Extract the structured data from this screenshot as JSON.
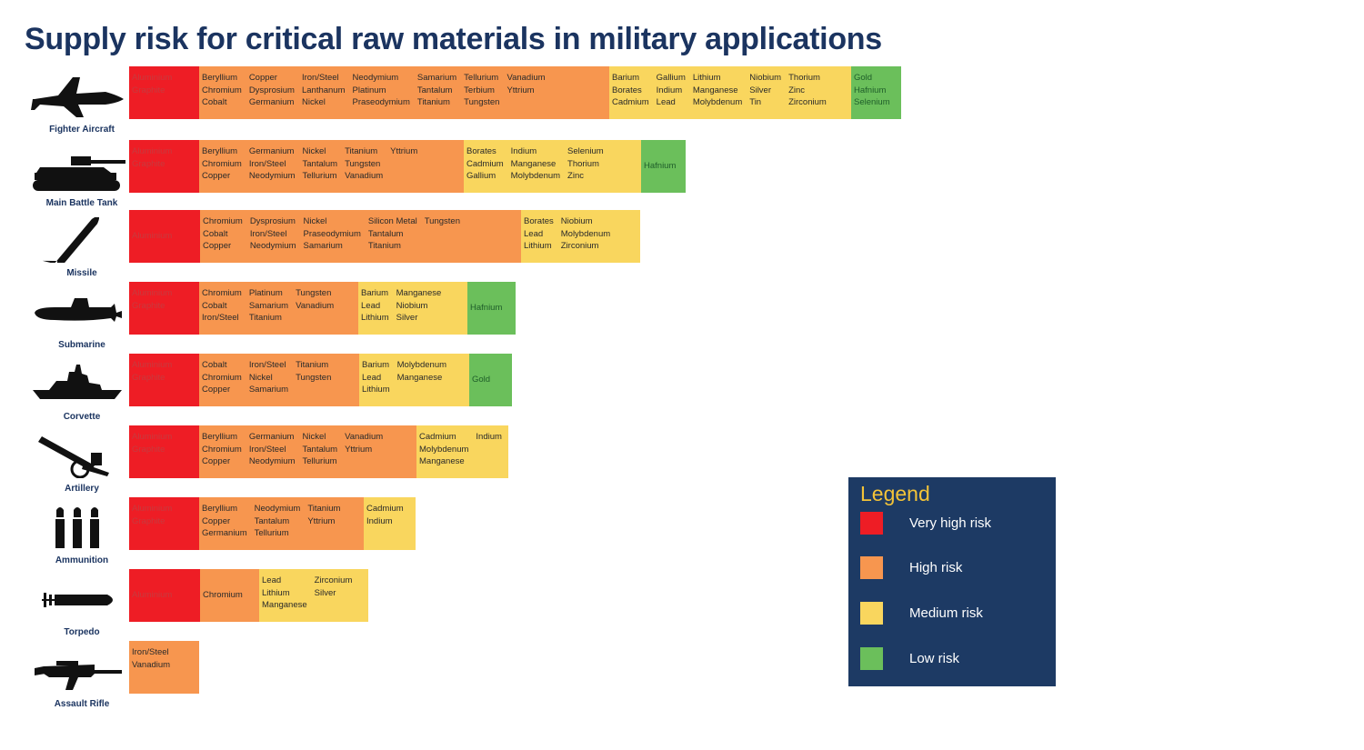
{
  "title": "Supply risk for critical raw materials in military applications",
  "legend": {
    "title": "Legend",
    "items": [
      {
        "key": "very_high",
        "label": "Very high risk",
        "color": "#ee1d25"
      },
      {
        "key": "high",
        "label": "High risk",
        "color": "#f7964f"
      },
      {
        "key": "medium",
        "label": "Medium risk",
        "color": "#f9d65e"
      },
      {
        "key": "low",
        "label": "Low risk",
        "color": "#6bbf5b"
      }
    ]
  },
  "chart_data": {
    "type": "table",
    "title": "Supply risk for critical raw materials in military applications",
    "risk_levels": [
      "very_high",
      "high",
      "medium",
      "low"
    ],
    "platforms": [
      {
        "name": "Fighter Aircraft",
        "icon": "fighter-aircraft-icon",
        "segments": [
          {
            "risk": "very_high",
            "columns": [
              [
                "Aluminium",
                "Graphite"
              ]
            ]
          },
          {
            "risk": "high",
            "columns": [
              [
                "Beryllium",
                "Chromium",
                "Cobalt"
              ],
              [
                "Copper",
                "Dysprosium",
                "Germanium"
              ],
              [
                "Iron/Steel",
                "Lanthanum",
                "Nickel"
              ],
              [
                "Neodymium",
                "Platinum",
                "Praseodymium"
              ],
              [
                "Samarium",
                "Tantalum",
                "Titanium"
              ],
              [
                "Tellurium",
                "Terbium",
                "Tungsten"
              ],
              [
                "Vanadium",
                "Yttrium"
              ]
            ]
          },
          {
            "risk": "medium",
            "columns": [
              [
                "Barium",
                "Borates",
                "Cadmium"
              ],
              [
                "Gallium",
                "Indium",
                "Lead"
              ],
              [
                "Lithium",
                "Manganese",
                "Molybdenum"
              ],
              [
                "Niobium",
                "Silver",
                "Tin"
              ],
              [
                "Thorium",
                "Zinc",
                "Zirconium"
              ]
            ]
          },
          {
            "risk": "low",
            "columns": [
              [
                "Gold",
                "Hafnium",
                "Selenium"
              ]
            ]
          }
        ]
      },
      {
        "name": "Main Battle Tank",
        "icon": "tank-icon",
        "segments": [
          {
            "risk": "very_high",
            "columns": [
              [
                "Aluminium",
                "Graphite"
              ]
            ]
          },
          {
            "risk": "high",
            "columns": [
              [
                "Beryllium",
                "Chromium",
                "Copper"
              ],
              [
                "Germanium",
                "Iron/Steel",
                "Neodymium"
              ],
              [
                "Nickel",
                "Tantalum",
                "Tellurium"
              ],
              [
                "Titanium",
                "Tungsten",
                "Vanadium"
              ],
              [
                "Yttrium"
              ]
            ]
          },
          {
            "risk": "medium",
            "columns": [
              [
                "Borates",
                "Cadmium",
                "Gallium"
              ],
              [
                "Indium",
                "Manganese",
                "Molybdenum"
              ],
              [
                "Selenium",
                "Thorium",
                "Zinc"
              ]
            ]
          },
          {
            "risk": "low",
            "columns": [
              [
                "Hafnium"
              ]
            ]
          }
        ]
      },
      {
        "name": "Missile",
        "icon": "missile-icon",
        "segments": [
          {
            "risk": "very_high",
            "columns": [
              [
                "Aluminium"
              ]
            ]
          },
          {
            "risk": "high",
            "columns": [
              [
                "Chromium",
                "Cobalt",
                "Copper"
              ],
              [
                "Dysprosium",
                "Iron/Steel",
                "Neodymium"
              ],
              [
                "Nickel",
                "Praseodymium",
                "Samarium"
              ],
              [
                "Silicon Metal",
                "Tantalum",
                "Titanium"
              ],
              [
                "Tungsten"
              ]
            ]
          },
          {
            "risk": "medium",
            "columns": [
              [
                "Borates",
                "Lead",
                "Lithium"
              ],
              [
                "Niobium",
                "Molybdenum",
                "Zirconium"
              ]
            ]
          }
        ]
      },
      {
        "name": "Submarine",
        "icon": "submarine-icon",
        "segments": [
          {
            "risk": "very_high",
            "columns": [
              [
                "Aluminium",
                "Graphite"
              ]
            ]
          },
          {
            "risk": "high",
            "columns": [
              [
                "Chromium",
                "Cobalt",
                "Iron/Steel"
              ],
              [
                "Platinum",
                "Samarium",
                "Titanium"
              ],
              [
                "Tungsten",
                "Vanadium"
              ]
            ]
          },
          {
            "risk": "medium",
            "columns": [
              [
                "Barium",
                "Lead",
                "Lithium"
              ],
              [
                "Manganese",
                "Niobium",
                "Silver"
              ]
            ]
          },
          {
            "risk": "low",
            "columns": [
              [
                "Hafnium"
              ]
            ]
          }
        ]
      },
      {
        "name": "Corvette",
        "icon": "corvette-icon",
        "segments": [
          {
            "risk": "very_high",
            "columns": [
              [
                "Aluminium",
                "Graphite"
              ]
            ]
          },
          {
            "risk": "high",
            "columns": [
              [
                "Cobalt",
                "Chromium",
                "Copper"
              ],
              [
                "Iron/Steel",
                "Nickel",
                "Samarium"
              ],
              [
                "Titanium",
                "Tungsten"
              ]
            ]
          },
          {
            "risk": "medium",
            "columns": [
              [
                "Barium",
                "Lead",
                "Lithium"
              ],
              [
                "Molybdenum",
                "Manganese"
              ]
            ]
          },
          {
            "risk": "low",
            "columns": [
              [
                "Gold"
              ]
            ]
          }
        ]
      },
      {
        "name": "Artillery",
        "icon": "artillery-icon",
        "segments": [
          {
            "risk": "very_high",
            "columns": [
              [
                "Aluminium",
                "Graphite"
              ]
            ]
          },
          {
            "risk": "high",
            "columns": [
              [
                "Beryllium",
                "Chromium",
                "Copper"
              ],
              [
                "Germanium",
                "Iron/Steel",
                "Neodymium"
              ],
              [
                "Nickel",
                "Tantalum",
                "Tellurium"
              ],
              [
                "Vanadium",
                "Yttrium"
              ]
            ]
          },
          {
            "risk": "medium",
            "columns": [
              [
                "Cadmium",
                "Molybdenum",
                "Manganese"
              ],
              [
                "Indium"
              ]
            ]
          }
        ]
      },
      {
        "name": "Ammunition",
        "icon": "ammunition-icon",
        "segments": [
          {
            "risk": "very_high",
            "columns": [
              [
                "Aluminium",
                "Graphite"
              ]
            ]
          },
          {
            "risk": "high",
            "columns": [
              [
                "Beryllium",
                "Copper",
                "Germanium"
              ],
              [
                "Neodymium",
                "Tantalum",
                "Tellurium"
              ],
              [
                "Titanium",
                "Yttrium"
              ]
            ]
          },
          {
            "risk": "medium",
            "columns": [
              [
                "Cadmium",
                "Indium"
              ]
            ]
          }
        ]
      },
      {
        "name": "Torpedo",
        "icon": "torpedo-icon",
        "segments": [
          {
            "risk": "very_high",
            "columns": [
              [
                "Aluminium"
              ]
            ]
          },
          {
            "risk": "high",
            "columns": [
              [
                "Chromium"
              ]
            ]
          },
          {
            "risk": "medium",
            "columns": [
              [
                "Lead",
                "Lithium",
                "Manganese"
              ],
              [
                "Zirconium",
                "Silver"
              ]
            ]
          }
        ]
      },
      {
        "name": "Assault Rifle",
        "icon": "assault-rifle-icon",
        "segments": [
          {
            "risk": "high",
            "columns": [
              [
                "Iron/Steel",
                "Vanadium"
              ]
            ]
          }
        ]
      }
    ]
  }
}
